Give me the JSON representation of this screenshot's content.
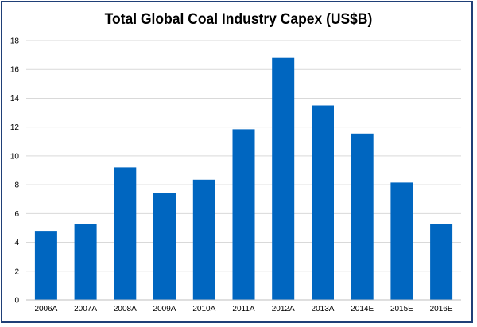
{
  "chart_data": {
    "type": "bar",
    "title": "Total Global Coal Industry Capex (US$B)",
    "xlabel": "",
    "ylabel": "",
    "categories": [
      "2006A",
      "2007A",
      "2008A",
      "2009A",
      "2010A",
      "2011A",
      "2012A",
      "2013A",
      "2014E",
      "2015E",
      "2016E"
    ],
    "values": [
      4.8,
      5.3,
      9.2,
      7.4,
      8.35,
      11.85,
      16.8,
      13.5,
      11.55,
      8.15,
      5.3
    ],
    "ylim": [
      0,
      18
    ],
    "yticks": [
      0,
      2,
      4,
      6,
      8,
      10,
      12,
      14,
      16,
      18
    ],
    "grid": true,
    "legend": "none",
    "bar_color": "#0066c0",
    "grid_color": "#d9d9d9"
  }
}
